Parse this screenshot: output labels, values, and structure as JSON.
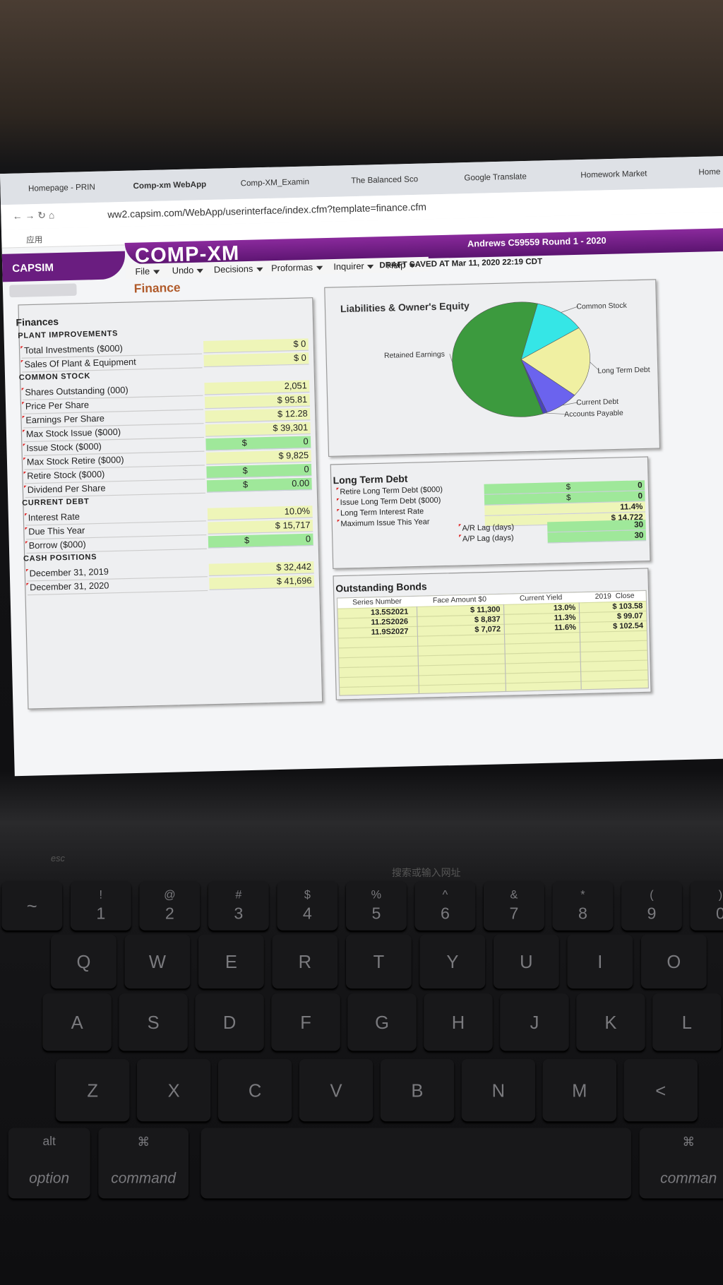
{
  "browser": {
    "tabs": [
      "Homepage - PRIN",
      "Comp-xm WebApp",
      "Comp-XM_Examin",
      "The Balanced Sco",
      "Google Translate",
      "Homework Market",
      "Home"
    ],
    "url": "ww2.capsim.com/WebApp/userinterface/index.cfm?template=finance.cfm",
    "bookmarks": "应用"
  },
  "header": {
    "brand": "CAPSIM",
    "product": "COMP-XM",
    "team": "Andrews C59559 Round 1 - 2020",
    "menu": [
      "File",
      "Undo",
      "Decisions",
      "Proformas",
      "Inquirer",
      "Help"
    ],
    "draft_status": "DRAFT SAVED AT Mar 11, 2020 22:19 CDT",
    "page_title": "Finance"
  },
  "finances": {
    "title": "Finances",
    "sections": [
      {
        "heading": "PLANT IMPROVEMENTS",
        "rows": [
          {
            "label": "Total Investments ($000)",
            "value": "$ 0"
          },
          {
            "label": "Sales Of Plant & Equipment",
            "value": "$ 0"
          }
        ]
      },
      {
        "heading": "COMMON STOCK",
        "rows": [
          {
            "label": "Shares Outstanding (000)",
            "value": "2,051"
          },
          {
            "label": "Price Per Share",
            "value": "$ 95.81"
          },
          {
            "label": "Earnings Per Share",
            "value": "$ 12.28"
          },
          {
            "label": "Max Stock Issue ($000)",
            "value": "$ 39,301"
          },
          {
            "label": "Issue Stock ($000)",
            "currency": "$",
            "value": "0",
            "input": true
          },
          {
            "label": "Max Stock Retire ($000)",
            "value": "$ 9,825"
          },
          {
            "label": "Retire Stock ($000)",
            "currency": "$",
            "value": "0",
            "input": true
          },
          {
            "label": "Dividend Per Share",
            "currency": "$",
            "value": "0.00",
            "input": true
          }
        ]
      },
      {
        "heading": "CURRENT DEBT",
        "rows": [
          {
            "label": "Interest Rate",
            "value": "10.0%"
          },
          {
            "label": "Due This Year",
            "value": "$ 15,717"
          },
          {
            "label": "Borrow ($000)",
            "currency": "$",
            "value": "0",
            "input": true
          }
        ]
      },
      {
        "heading": "CASH POSITIONS",
        "rows": [
          {
            "label": "December 31, 2019",
            "value": "$ 32,442"
          },
          {
            "label": "December 31, 2020",
            "value": "$ 41,696"
          }
        ]
      }
    ]
  },
  "chart_data": {
    "type": "pie",
    "title": "Liabilities & Owner's Equity",
    "categories": [
      "Common Stock",
      "Long Term Debt",
      "Current Debt",
      "Accounts Payable",
      "Retained Earnings"
    ],
    "values": [
      12,
      20,
      8,
      1,
      59
    ],
    "colors": [
      "#35e6e6",
      "#f0f0a2",
      "#6b63ee",
      "#4a44b8",
      "#3c9a3e"
    ]
  },
  "long_term_debt": {
    "title": "Long Term Debt",
    "rows": [
      {
        "label": "Retire Long Term Debt ($000)",
        "currency": "$",
        "value": "0",
        "input": true
      },
      {
        "label": "Issue Long Term Debt ($000)",
        "currency": "$",
        "value": "0",
        "input": true
      },
      {
        "label": "Long Term Interest Rate",
        "value": "11.4%"
      },
      {
        "label": "Maximum Issue This Year",
        "value": "$ 14,722"
      },
      {
        "label": "A/R Lag (days)",
        "value": "30",
        "input": true
      },
      {
        "label": "A/P Lag (days)",
        "value": "30",
        "input": true
      }
    ]
  },
  "bonds": {
    "title": "Outstanding Bonds",
    "columns": [
      "Series Number",
      "Face Amount $0",
      "Current Yield",
      "2019  Close"
    ],
    "rows": [
      [
        "13.5S2021",
        "$ 11,300",
        "13.0%",
        "$ 103.58"
      ],
      [
        "11.2S2026",
        "$ 8,837",
        "11.3%",
        "$ 99.07"
      ],
      [
        "11.9S2027",
        "$ 7,072",
        "11.6%",
        "$ 102.54"
      ]
    ]
  },
  "keyboard": {
    "touch_bar": [
      "esc",
      "搜索或输入网址"
    ],
    "rows": [
      [
        {
          "main": "~"
        },
        {
          "shift": "!",
          "main": "1"
        },
        {
          "shift": "@",
          "main": "2"
        },
        {
          "shift": "#",
          "main": "3"
        },
        {
          "shift": "$",
          "main": "4"
        },
        {
          "shift": "%",
          "main": "5"
        },
        {
          "shift": "^",
          "main": "6"
        },
        {
          "shift": "&",
          "main": "7"
        },
        {
          "shift": "*",
          "main": "8"
        },
        {
          "shift": "(",
          "main": "9"
        },
        {
          "shift": ")",
          "main": "0"
        }
      ],
      [
        {
          "main": "Q"
        },
        {
          "main": "W"
        },
        {
          "main": "E"
        },
        {
          "main": "R"
        },
        {
          "main": "T"
        },
        {
          "main": "Y"
        },
        {
          "main": "U"
        },
        {
          "main": "I"
        },
        {
          "main": "O"
        }
      ],
      [
        {
          "main": "A"
        },
        {
          "main": "S"
        },
        {
          "main": "D"
        },
        {
          "main": "F"
        },
        {
          "main": "G"
        },
        {
          "main": "H"
        },
        {
          "main": "J"
        },
        {
          "main": "K"
        },
        {
          "main": "L"
        }
      ],
      [
        {
          "main": "Z"
        },
        {
          "main": "X"
        },
        {
          "main": "C"
        },
        {
          "main": "V"
        },
        {
          "main": "B"
        },
        {
          "main": "N"
        },
        {
          "main": "M"
        },
        {
          "main": "<"
        }
      ],
      [
        {
          "shift": "alt",
          "main": "option"
        },
        {
          "shift": "⌘",
          "main": "command"
        },
        {
          "shift": "",
          "main": ""
        },
        {
          "shift": "⌘",
          "main": "comman"
        }
      ]
    ]
  }
}
